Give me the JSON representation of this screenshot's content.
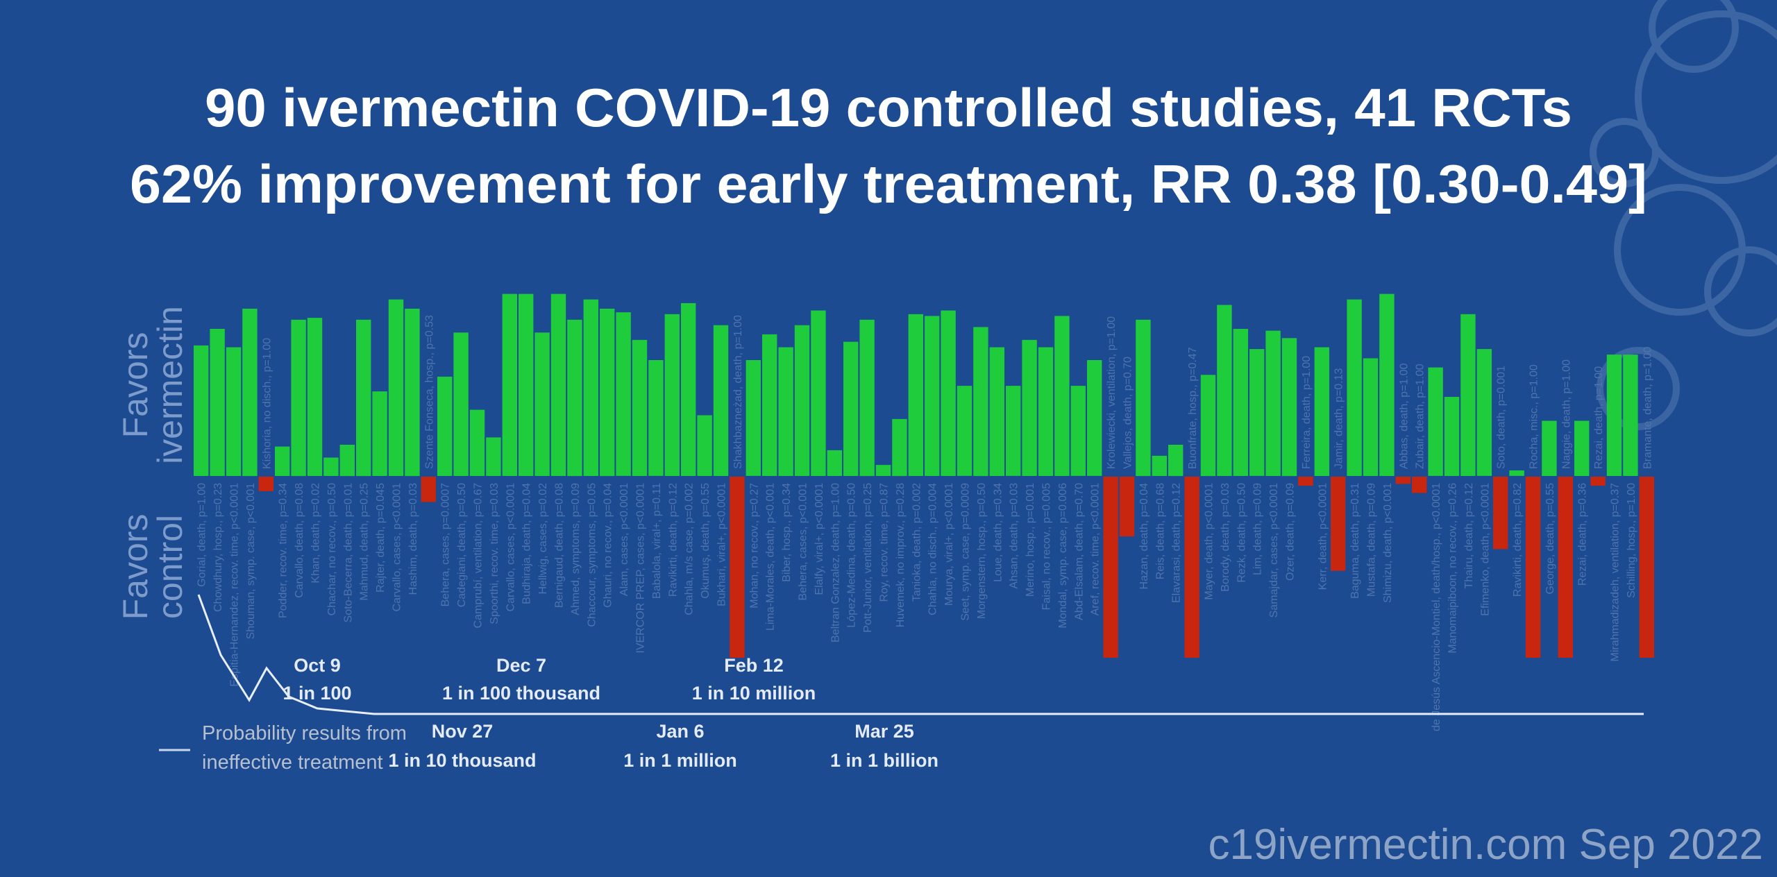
{
  "chart_data": {
    "type": "bar",
    "title": "90 ivermectin COVID-19 controlled studies, 41 RCTs",
    "subtitle": "62% improvement for early treatment, RR 0.38 [0.30-0.49]",
    "ylabel_positive": [
      "Favors",
      "ivermectin"
    ],
    "ylabel_negative": [
      "Favors",
      "control"
    ],
    "ylim": [
      -100,
      100
    ],
    "unit": "% improvement",
    "colors": {
      "favors_ivermectin": "#1fcc3c",
      "favors_control": "#c8260f",
      "background": "#1c4b91",
      "probability_line": "#e8eef8"
    },
    "studies": [
      {
        "label": "Gorial, death, p=1.00",
        "value": 71
      },
      {
        "label": "Chowdhury, hosp., p=0.23",
        "value": 80
      },
      {
        "label": "Espitia-Hernandez, recov. time, p<0.0001",
        "value": 70
      },
      {
        "label": "Shouman, symp. case, p<0.001",
        "value": 91
      },
      {
        "label": "Kishoria, no disch., p=1.00",
        "value": -8
      },
      {
        "label": "Podder, recov. time, p=0.34",
        "value": 16
      },
      {
        "label": "Carvallo, death, p=0.08",
        "value": 85
      },
      {
        "label": "Khan, death, p=0.02",
        "value": 86
      },
      {
        "label": "Chachar, no recov., p=0.50",
        "value": 10
      },
      {
        "label": "Soto-Becerra, death, p=0.01",
        "value": 17
      },
      {
        "label": "Mahmud, death, p=0.25",
        "value": 85
      },
      {
        "label": "Rajter, death, p=0.045",
        "value": 46
      },
      {
        "label": "Carvallo, cases, p<0.0001",
        "value": 96
      },
      {
        "label": "Hashim, death, p=0.03",
        "value": 91
      },
      {
        "label": "Szente Fonseca, hosp., p=0.53",
        "value": -14
      },
      {
        "label": "Behera, cases, p=0.0007",
        "value": 54
      },
      {
        "label": "Cadegiani, death, p=0.50",
        "value": 78
      },
      {
        "label": "Camprubí, ventilation, p=0.67",
        "value": 36
      },
      {
        "label": "Spoorthi, recov. time, p=0.03",
        "value": 21
      },
      {
        "label": "Carvallo, cases, p<0.0001",
        "value": 99
      },
      {
        "label": "Budhiraja, death, p=0.04",
        "value": 99
      },
      {
        "label": "Hellwig, cases, p=0.02",
        "value": 78
      },
      {
        "label": "Bernigaud, death, p=0.08",
        "value": 99
      },
      {
        "label": "Ahmed, symptoms, p=0.09",
        "value": 85
      },
      {
        "label": "Chaccour, symptoms, p=0.05",
        "value": 96
      },
      {
        "label": "Ghauri, no recov., p=0.04",
        "value": 91
      },
      {
        "label": "Alam, cases, p<0.0001",
        "value": 89
      },
      {
        "label": "IVERCOR PREP, cases, p<0.0001",
        "value": 74
      },
      {
        "label": "Babalola, viral+, p=0.11",
        "value": 63
      },
      {
        "label": "Ravikirti, death, p=0.12",
        "value": 88
      },
      {
        "label": "Chahla, m/s case, p=0.002",
        "value": 94
      },
      {
        "label": "Okumuş, death, p=0.55",
        "value": 33
      },
      {
        "label": "Bukhari, viral+, p<0.0001",
        "value": 82
      },
      {
        "label": "Shakhbazneżad, death, p=1.00",
        "value": -100
      },
      {
        "label": "Mohan, no recov., p=0.27",
        "value": 63
      },
      {
        "label": "Lima-Morales, death, p<0.001",
        "value": 77
      },
      {
        "label": "Biber, hosp., p=0.34",
        "value": 70
      },
      {
        "label": "Behera, cases, p<0.001",
        "value": 82
      },
      {
        "label": "Elalfy, viral+, p<0.0001",
        "value": 90
      },
      {
        "label": "Beltran Gonzalez, death, p=1.00",
        "value": 14
      },
      {
        "label": "López-Medina, death, p=0.50",
        "value": 73
      },
      {
        "label": "Pott-Junior, ventilation, p=0.25",
        "value": 85
      },
      {
        "label": "Roy, recov. time, p=0.87",
        "value": 6
      },
      {
        "label": "Huvemek, no improv., p=0.28",
        "value": 31
      },
      {
        "label": "Tanioka, death, p=0.002",
        "value": 88
      },
      {
        "label": "Chahla, no disch., p=0.004",
        "value": 87
      },
      {
        "label": "Mourya, viral+, p<0.0001",
        "value": 90
      },
      {
        "label": "Seet, symp. case, p=0.0009",
        "value": 49
      },
      {
        "label": "Morgenstern, hosp., p=0.50",
        "value": 81
      },
      {
        "label": "Loue, death, p=0.34",
        "value": 70
      },
      {
        "label": "Ahsan, death, p=0.03",
        "value": 49
      },
      {
        "label": "Merino, hosp., p=0.001",
        "value": 74
      },
      {
        "label": "Faisal, no recov., p=0.005",
        "value": 70
      },
      {
        "label": "Mondal, symp. case, p=0.006",
        "value": 87
      },
      {
        "label": "Abd-Elsalam, death, p=0.70",
        "value": 49
      },
      {
        "label": "Aref, recov. time, p<0.0001",
        "value": 63
      },
      {
        "label": "Krolewiecki, ventilation, p=1.00",
        "value": -100
      },
      {
        "label": "Vallejos, death, p=0.70",
        "value": -33
      },
      {
        "label": "Hazan, death, p=0.04",
        "value": 85
      },
      {
        "label": "Reis, death, p=0.68",
        "value": 11
      },
      {
        "label": "Elavarasi, death, p=0.12",
        "value": 17
      },
      {
        "label": "Buonfrate, hosp., p=0.47",
        "value": -100
      },
      {
        "label": "Mayer, death, p<0.0001",
        "value": 55
      },
      {
        "label": "Borody, death, p=0.03",
        "value": 93
      },
      {
        "label": "Rezk, death, p=0.50",
        "value": 80
      },
      {
        "label": "Lim, death, p=0.09",
        "value": 69
      },
      {
        "label": "Samajdar, cases, p<0.0001",
        "value": 79
      },
      {
        "label": "Ozer, death, p=0.09",
        "value": 75
      },
      {
        "label": "Ferreira, death, p=1.00",
        "value": -5
      },
      {
        "label": "Kerr, death, p<0.0001",
        "value": 70
      },
      {
        "label": "Jamir, death, p=0.13",
        "value": -52
      },
      {
        "label": "Baguma, death, p=0.31",
        "value": 96
      },
      {
        "label": "Mustafa, death, p=0.09",
        "value": 64
      },
      {
        "label": "Shimizu, death, p<0.001",
        "value": 99
      },
      {
        "label": "Abbas, death, p=1.00",
        "value": -4
      },
      {
        "label": "Zubair, death, p=1.00",
        "value": -9
      },
      {
        "label": "de Jesús Ascencio-Montiel, death/hosp., p<0.0001",
        "value": 59
      },
      {
        "label": "Manomaipiboon, no recov., p=0.26",
        "value": 43
      },
      {
        "label": "Thairu, death, p=0.12",
        "value": 88
      },
      {
        "label": "Efimenko, death, p<0.0001",
        "value": 69
      },
      {
        "label": "Soto, death, p=0.001",
        "value": -40
      },
      {
        "label": "Ravikirti, death, p=0.82",
        "value": 3
      },
      {
        "label": "Rocha, misc., p=1.00",
        "value": -100
      },
      {
        "label": "George, death, p=0.55",
        "value": 30
      },
      {
        "label": "Naggie, death, p=1.00",
        "value": -100
      },
      {
        "label": "Rezai, death, p=0.36",
        "value": 30
      },
      {
        "label": "Rezai, death, p=1.00",
        "value": -5
      },
      {
        "label": "Mirahmadizadeh, ventilation, p=0.37",
        "value": 66
      },
      {
        "label": "Schilling, hosp., p=1.00",
        "value": 66
      },
      {
        "label": "Bramante, death, p=1.00",
        "value": -100
      }
    ],
    "probability_series": {
      "legend": [
        "Probability results from",
        "ineffective treatment"
      ],
      "annotations": [
        {
          "date": "Oct 9",
          "text": "1 in 100"
        },
        {
          "date": "Nov 27",
          "text": "1 in 10 thousand"
        },
        {
          "date": "Dec 7",
          "text": "1 in 100 thousand"
        },
        {
          "date": "Jan 6",
          "text": "1 in 1 million"
        },
        {
          "date": "Feb 12",
          "text": "1 in 10 million"
        },
        {
          "date": "Mar 25",
          "text": "1 in 1 billion"
        }
      ]
    }
  },
  "watermark": "c19ivermectin.com Sep 2022"
}
